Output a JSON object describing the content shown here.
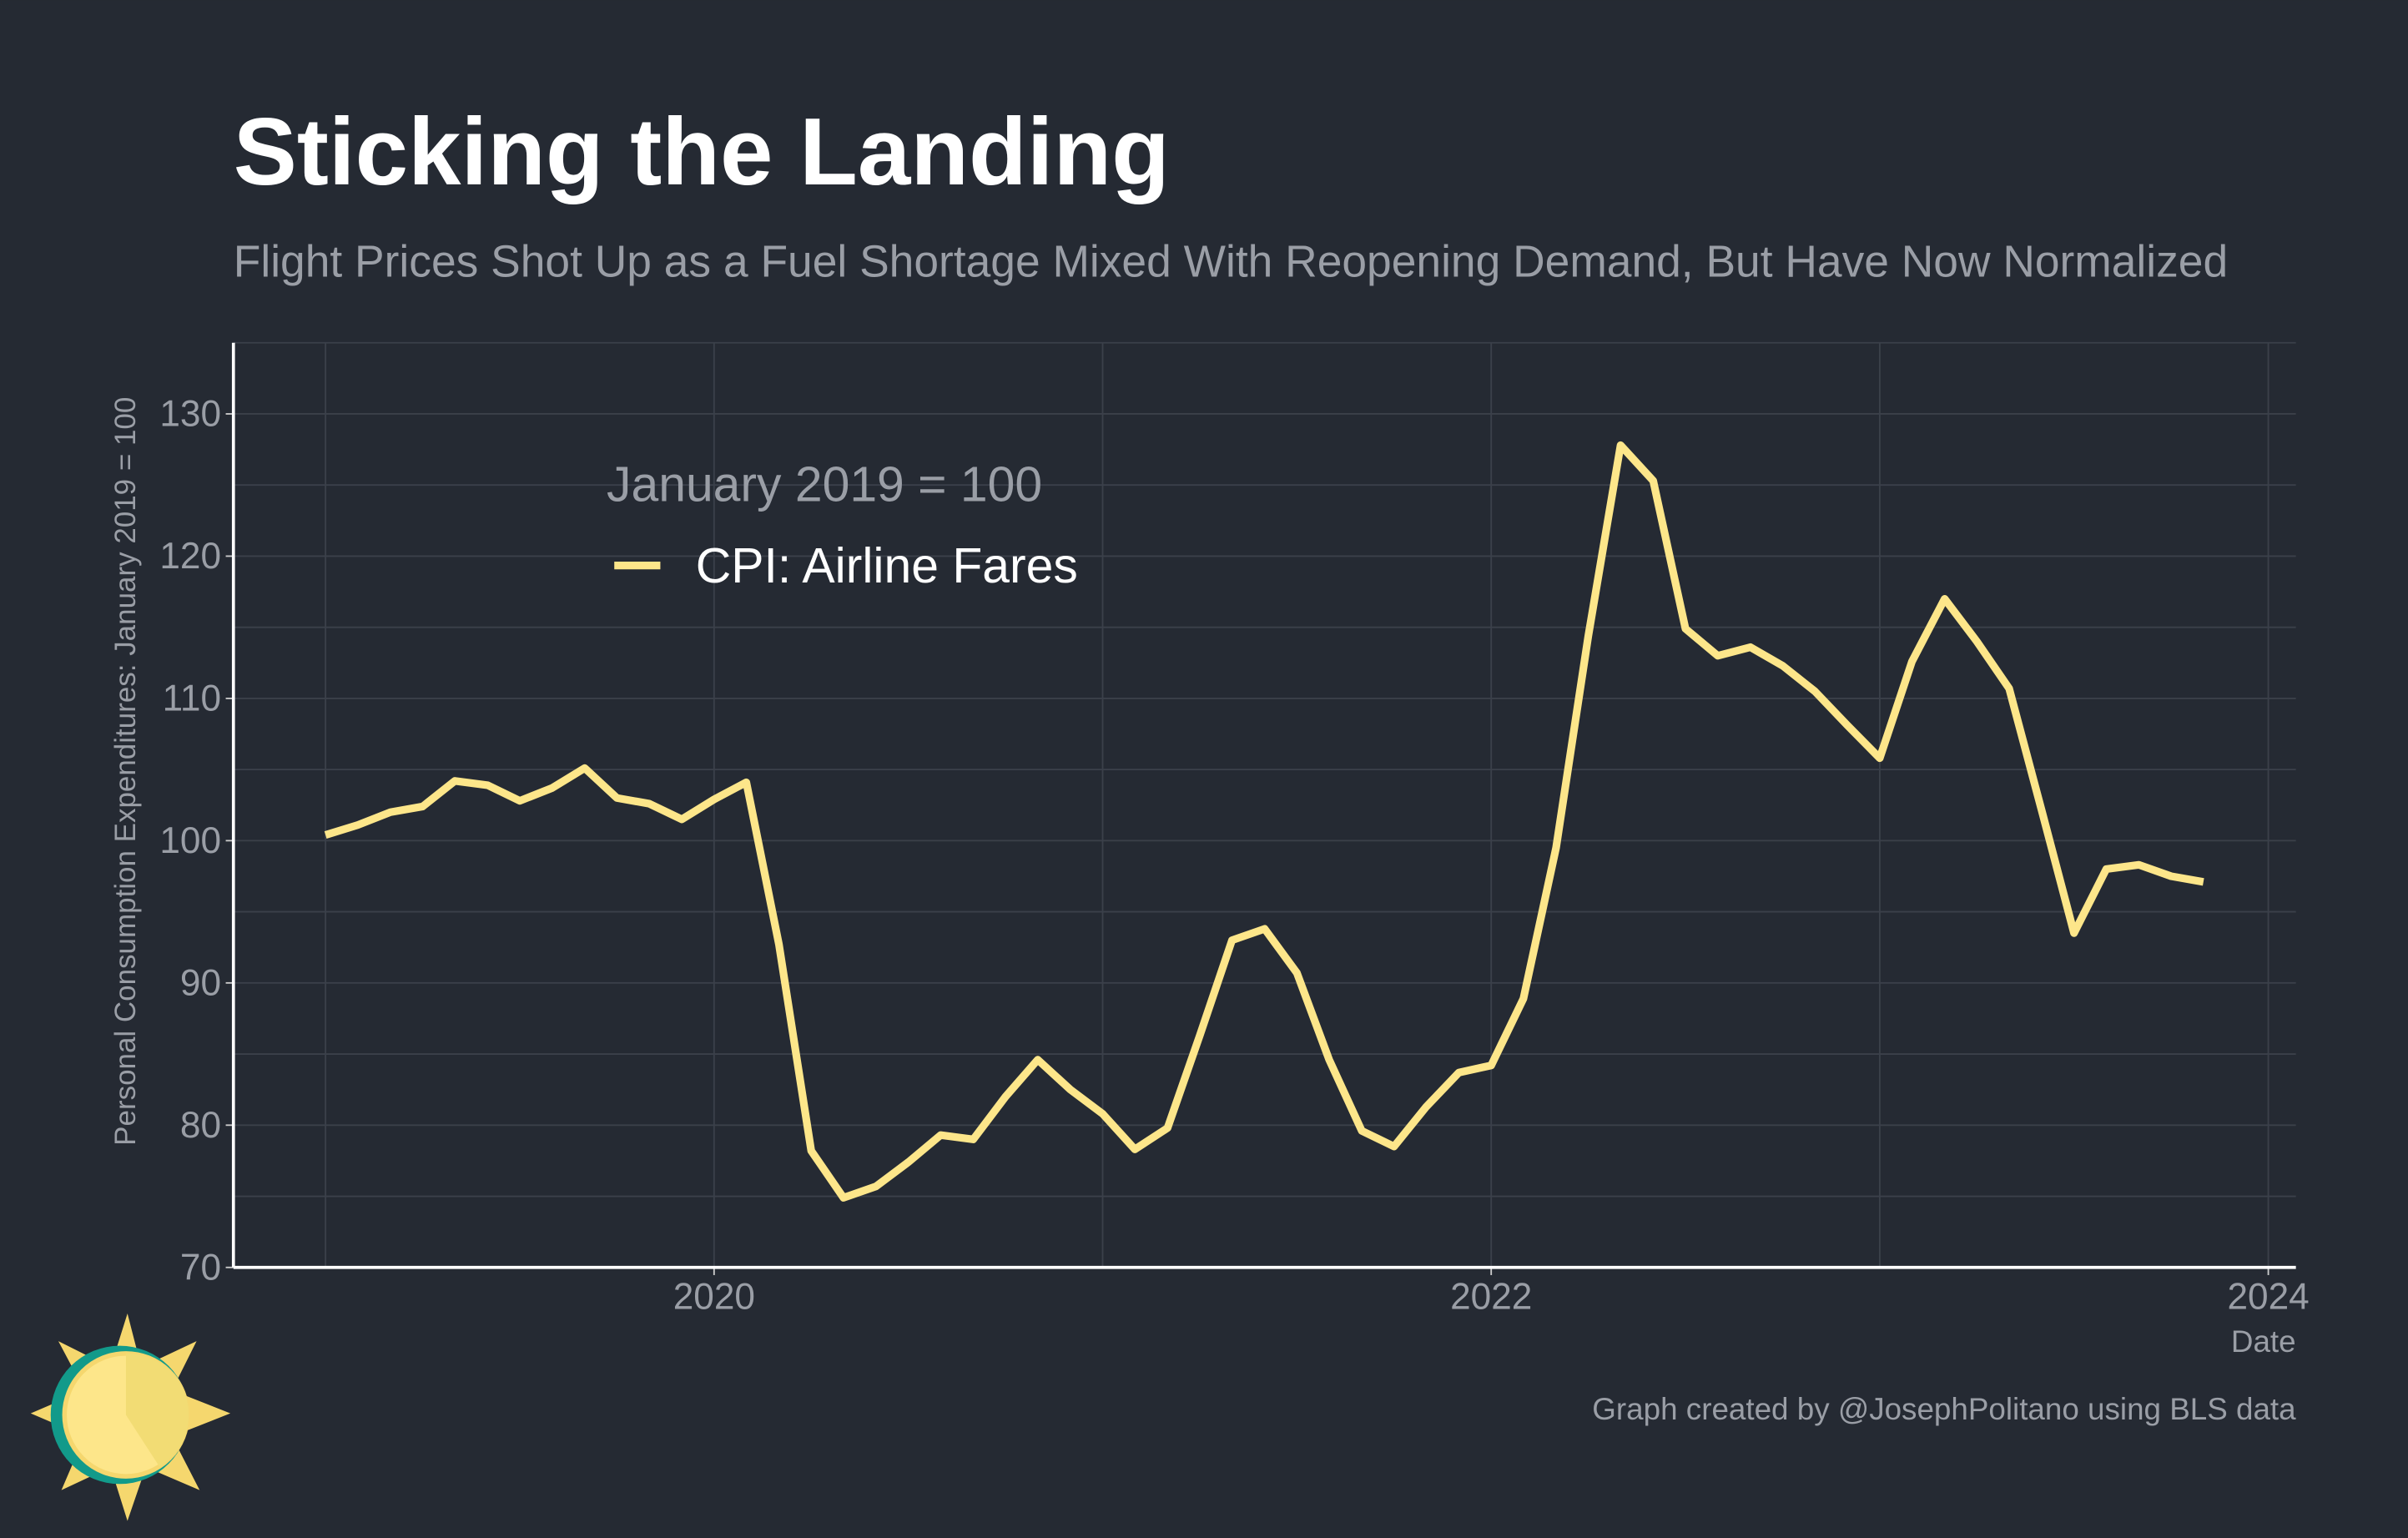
{
  "chart_data": {
    "type": "line",
    "title": "Sticking the Landing",
    "subtitle": "Flight Prices Shot Up as a Fuel Shortage Mixed With Reopening Demand, But Have Now Normalized",
    "y_label": "Personal Consumption Expenditures: January 2019 = 100",
    "x_label": "Date",
    "legend_title": "January 2019 = 100",
    "legend_position": "top-left",
    "caption": "Graph created by @JosephPolitano using BLS data",
    "x": [
      2019,
      2019.083,
      2019.167,
      2019.25,
      2019.333,
      2019.417,
      2019.5,
      2019.583,
      2019.667,
      2019.75,
      2019.833,
      2019.917,
      2020,
      2020.083,
      2020.167,
      2020.25,
      2020.333,
      2020.417,
      2020.5,
      2020.583,
      2020.667,
      2020.75,
      2020.833,
      2020.917,
      2021,
      2021.083,
      2021.167,
      2021.25,
      2021.333,
      2021.417,
      2021.5,
      2021.583,
      2021.667,
      2021.75,
      2021.833,
      2021.917,
      2022,
      2022.083,
      2022.167,
      2022.25,
      2022.333,
      2022.417,
      2022.5,
      2022.583,
      2022.667,
      2022.75,
      2022.833,
      2022.917,
      2023,
      2023.083,
      2023.167,
      2023.25,
      2023.333,
      2023.417,
      2023.5,
      2023.583,
      2023.667,
      2023.75,
      2023.833
    ],
    "series": [
      {
        "name": "CPI: Airline Fares",
        "color": "#fde68a",
        "values": [
          100.4,
          101.1,
          102.0,
          102.4,
          104.2,
          103.9,
          102.8,
          103.7,
          105.1,
          103.0,
          102.6,
          101.5,
          102.9,
          104.1,
          92.7,
          78.2,
          74.9,
          75.7,
          77.4,
          79.3,
          79.0,
          82.0,
          84.6,
          82.5,
          80.8,
          78.3,
          79.8,
          86.3,
          93.0,
          93.8,
          90.7,
          84.6,
          79.6,
          78.5,
          81.3,
          83.7,
          84.2,
          88.9,
          99.5,
          114.4,
          127.8,
          125.3,
          114.9,
          113.0,
          113.6,
          112.3,
          110.5,
          108.1,
          105.8,
          112.6,
          117.0,
          114.0,
          110.7,
          102.1,
          93.5,
          98.0,
          98.3,
          97.5,
          97.1
        ]
      }
    ],
    "xlim": [
      2018.763,
      2024.071
    ],
    "xticks": [
      2020,
      2022,
      2024
    ],
    "ylim": [
      70,
      135
    ],
    "yticks": [
      70,
      80,
      90,
      100,
      110,
      120,
      130
    ],
    "grid": true,
    "minor_grid": true
  }
}
